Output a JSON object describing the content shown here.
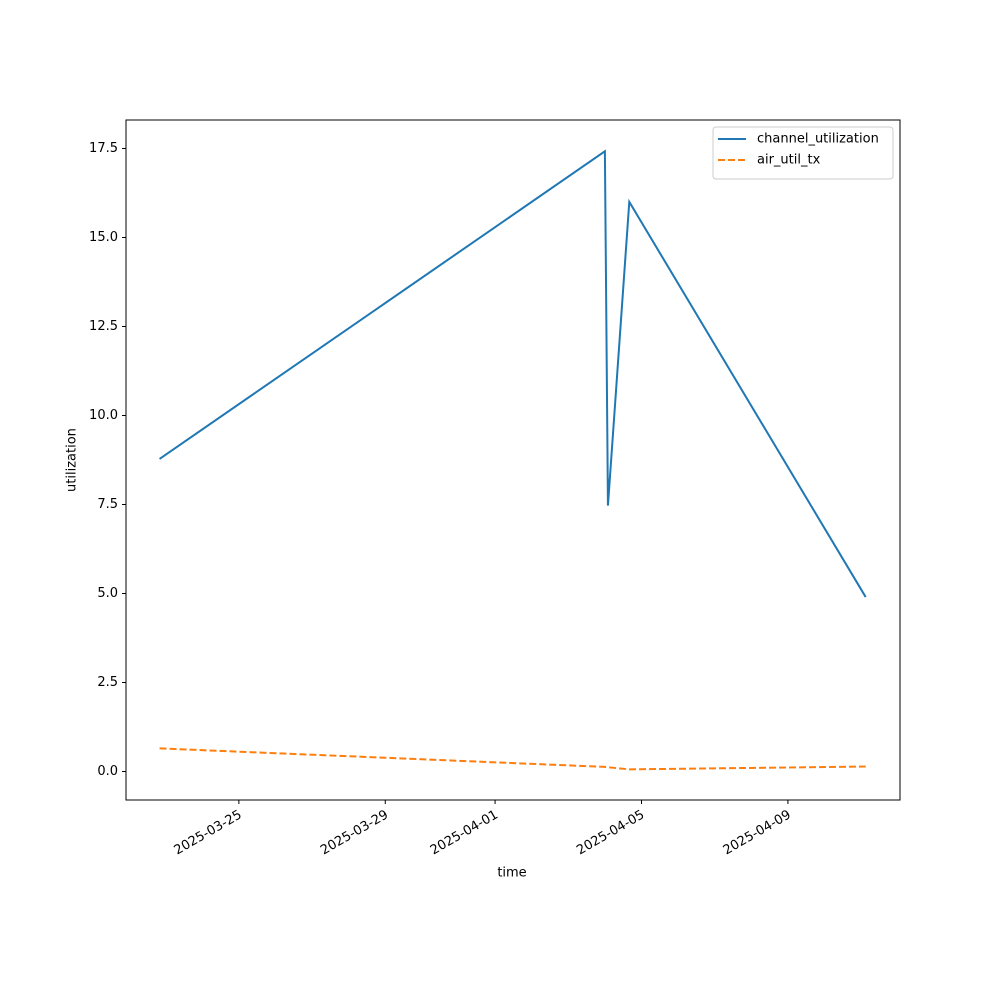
{
  "chart_data": {
    "type": "line",
    "xlabel": "time",
    "ylabel": "utilization",
    "x": [
      "2025-03-22T20:00",
      "2025-04-04T00:00",
      "2025-04-04T02:00",
      "2025-04-04T16:00",
      "2025-04-11T03:00"
    ],
    "series": [
      {
        "name": "channel_utilization",
        "color": "#1f77b4",
        "linestyle": "solid",
        "values": [
          8.78,
          17.42,
          7.47,
          16.0,
          4.9
        ]
      },
      {
        "name": "air_util_tx",
        "color": "#ff7f0e",
        "linestyle": "dashed",
        "values": [
          0.65,
          0.13,
          0.12,
          0.06,
          0.14
        ]
      }
    ],
    "xlim": [
      "2025-03-21T22:00",
      "2025-04-12T01:30"
    ],
    "xticks": [
      "2025-03-25",
      "2025-03-29",
      "2025-04-01",
      "2025-04-05",
      "2025-04-09"
    ],
    "ylim": [
      -0.8,
      18.3
    ],
    "yticks": [
      {
        "value": 0,
        "label": "0.0"
      },
      {
        "value": 2.5,
        "label": "2.5"
      },
      {
        "value": 5,
        "label": "5.0"
      },
      {
        "value": 7.5,
        "label": "7.5"
      },
      {
        "value": 10,
        "label": "10.0"
      },
      {
        "value": 12.5,
        "label": "12.5"
      },
      {
        "value": 15,
        "label": "15.0"
      },
      {
        "value": 17.5,
        "label": "17.5"
      }
    ],
    "legend": "upper right",
    "grid": false
  }
}
